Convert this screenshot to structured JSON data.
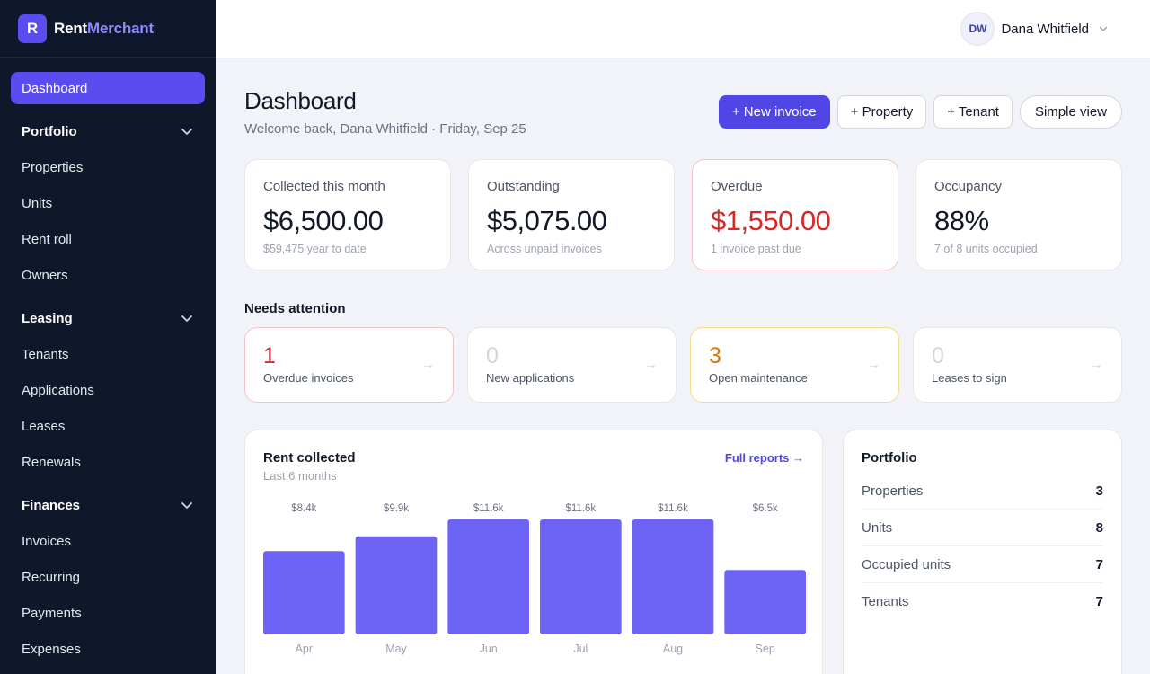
{
  "brand": {
    "logo_letter": "R",
    "name_part1": "Rent",
    "name_part2": "Merchant",
    "accent_color": "#5b4cf0"
  },
  "sidebar": {
    "active_item": "Dashboard",
    "groups": [
      {
        "label": "Portfolio",
        "items": [
          "Properties",
          "Units",
          "Rent roll",
          "Owners"
        ]
      },
      {
        "label": "Leasing",
        "items": [
          "Tenants",
          "Applications",
          "Leases",
          "Renewals"
        ]
      },
      {
        "label": "Finances",
        "items": [
          "Invoices",
          "Recurring",
          "Payments",
          "Expenses"
        ]
      }
    ]
  },
  "user": {
    "initials": "DW",
    "name": "Dana Whitfield"
  },
  "header": {
    "title": "Dashboard",
    "subtitle": "Welcome back, Dana Whitfield · Friday, Sep 25",
    "buttons": {
      "new_invoice": "+ New invoice",
      "property": "+ Property",
      "tenant": "+ Tenant",
      "simple_view": "Simple view"
    }
  },
  "stats": [
    {
      "label": "Collected this month",
      "value": "$6,500.00",
      "note": "$59,475 year to date"
    },
    {
      "label": "Outstanding",
      "value": "$5,075.00",
      "note": "Across unpaid invoices"
    },
    {
      "label": "Overdue",
      "value": "$1,550.00",
      "note": "1 invoice past due"
    },
    {
      "label": "Occupancy",
      "value": "88%",
      "note": "7 of 8 units occupied"
    }
  ],
  "attention": {
    "title": "Needs attention",
    "items": [
      {
        "count": "1",
        "label": "Overdue invoices"
      },
      {
        "count": "0",
        "label": "New applications"
      },
      {
        "count": "3",
        "label": "Open maintenance"
      },
      {
        "count": "0",
        "label": "Leases to sign"
      }
    ],
    "arrow": "→"
  },
  "rent_chart": {
    "title": "Rent collected",
    "subtitle": "Last 6 months",
    "link": "Full reports →",
    "bar_color": "#6d63f5"
  },
  "chart_data": {
    "type": "bar",
    "title": "Rent collected",
    "subtitle": "Last 6 months",
    "categories": [
      "Apr",
      "May",
      "Jun",
      "Jul",
      "Aug",
      "Sep"
    ],
    "values": [
      8400,
      9900,
      11600,
      11600,
      11600,
      6500
    ],
    "data_labels": [
      "$8.4k",
      "$9.9k",
      "$11.6k",
      "$11.6k",
      "$11.6k",
      "$6.5k"
    ],
    "ylim": [
      0,
      11600
    ],
    "grid": false
  },
  "portfolio": {
    "title": "Portfolio",
    "rows": [
      {
        "label": "Properties",
        "value": "3"
      },
      {
        "label": "Units",
        "value": "8"
      },
      {
        "label": "Occupied units",
        "value": "7"
      },
      {
        "label": "Tenants",
        "value": "7"
      }
    ]
  }
}
